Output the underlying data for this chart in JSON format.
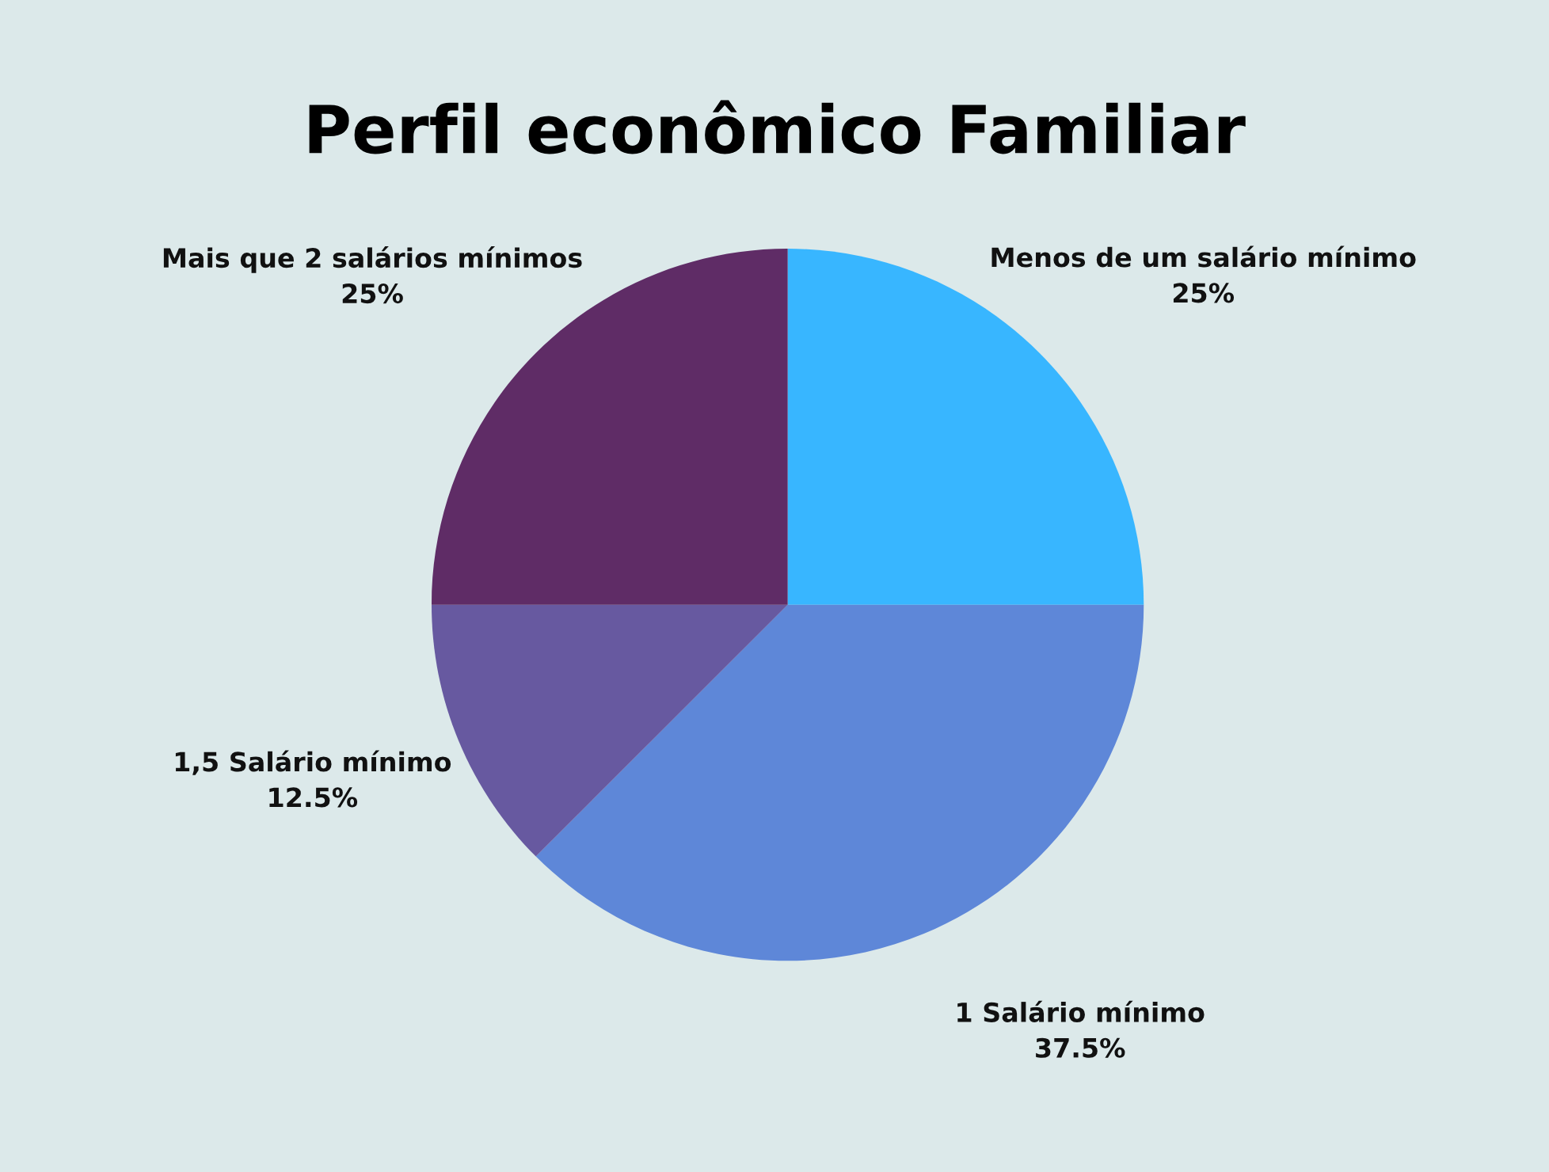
{
  "chart_data": {
    "type": "pie",
    "title": "Perfil econômico Familiar",
    "categories": [
      "Menos de um salário mínimo",
      "1 Salário mínimo",
      "1,5 Salário mínimo",
      "Mais que 2 salários mínimos"
    ],
    "values": [
      25,
      37.5,
      12.5,
      25
    ],
    "value_labels": [
      "25%",
      "37.5%",
      "12.5%",
      "25%"
    ],
    "colors": [
      "#38b6ff",
      "#5e87d8",
      "#6759a0",
      "#5f2c66"
    ],
    "legend": false
  }
}
